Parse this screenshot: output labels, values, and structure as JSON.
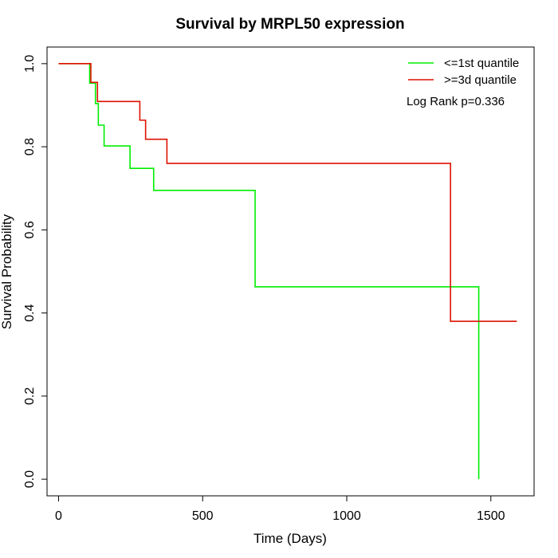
{
  "chart_data": {
    "type": "line",
    "title": "Survival by MRPL50 expression",
    "xlabel": "Time (Days)",
    "ylabel": "Survival Probability",
    "xlim": [
      -40,
      1650
    ],
    "ylim": [
      -0.04,
      1.04
    ],
    "x_ticks": [
      0,
      500,
      1000,
      1500
    ],
    "y_ticks": [
      0.0,
      0.2,
      0.4,
      0.6,
      0.8,
      1.0
    ],
    "x_tick_labels": [
      "0",
      "500",
      "1000",
      "1500"
    ],
    "y_tick_labels": [
      "0.0",
      "0.2",
      "0.4",
      "0.6",
      "0.8",
      "1.0"
    ],
    "grid": false,
    "legend_position": "top-right",
    "annotation": "Log Rank p=0.336",
    "series": [
      {
        "name": "<=1st quantile",
        "color": "#00ee00",
        "step": true,
        "x": [
          0,
          108,
          128,
          138,
          158,
          248,
          330,
          682,
          1458,
          1458
        ],
        "y": [
          1.0,
          0.953,
          0.904,
          0.852,
          0.802,
          0.748,
          0.695,
          0.463,
          0.463,
          0.0
        ]
      },
      {
        "name": ">=3d quantile",
        "color": "#dd1100",
        "step": true,
        "x": [
          0,
          112,
          135,
          282,
          302,
          376,
          1360,
          1590
        ],
        "y": [
          1.0,
          0.955,
          0.909,
          0.864,
          0.818,
          0.76,
          0.38,
          0.38
        ]
      }
    ]
  }
}
